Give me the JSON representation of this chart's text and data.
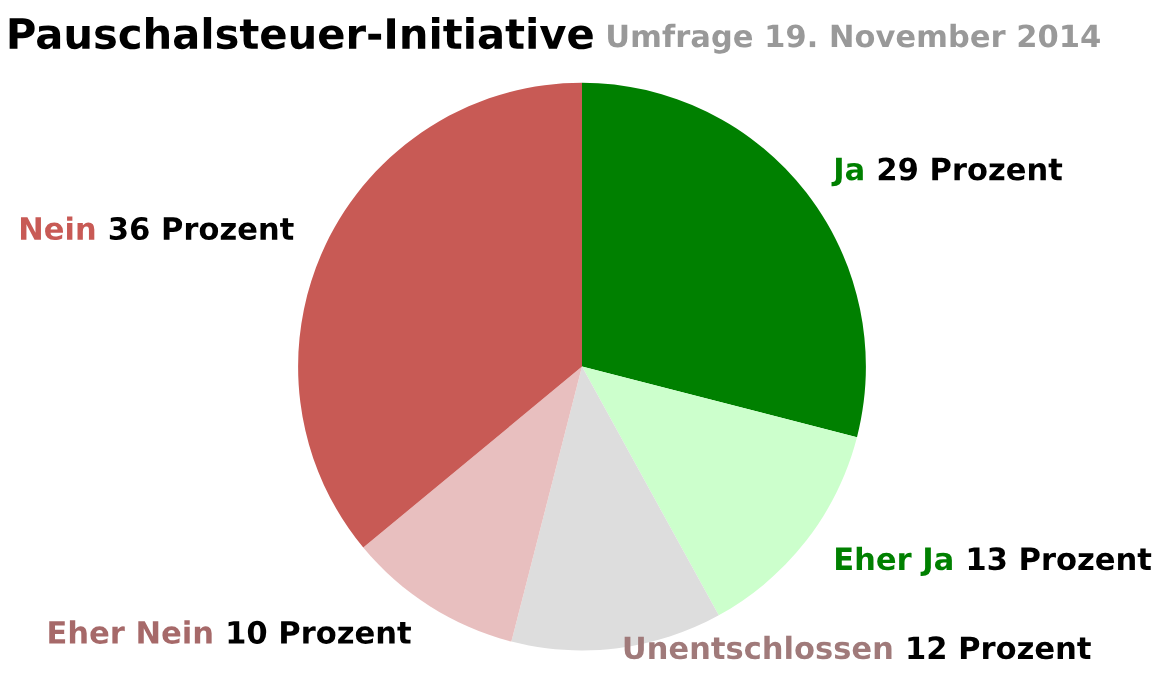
{
  "chart_data": {
    "type": "pie",
    "title": "Pauschalsteuer-Initiative",
    "subtitle": "Umfrage 19. November 2014",
    "categories": [
      "Ja",
      "Eher Ja",
      "Unentschlossen",
      "Eher Nein",
      "Nein"
    ],
    "values": [
      29,
      13,
      12,
      10,
      36
    ],
    "value_labels": [
      "29 Prozent",
      "13 Prozent",
      "12 Prozent",
      "10 Prozent",
      "36 Prozent"
    ],
    "colors": [
      "#008000",
      "#ccffcc",
      "#dddddd",
      "#e8bfbf",
      "#c85a55"
    ]
  }
}
